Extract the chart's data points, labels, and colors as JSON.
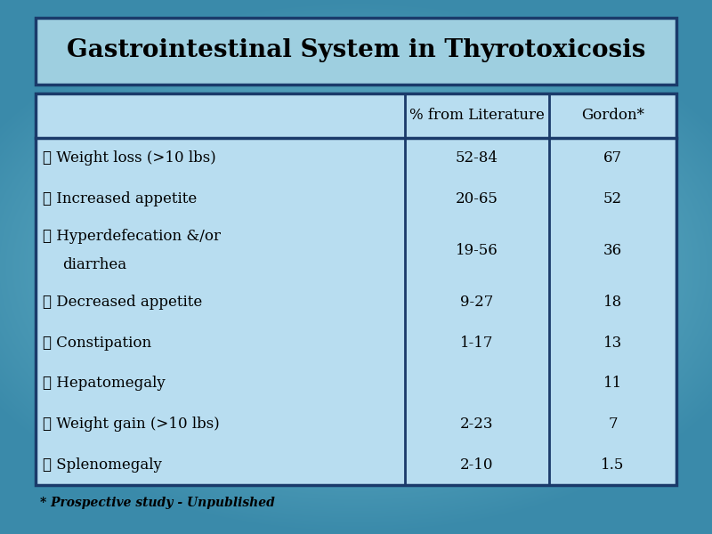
{
  "title": "Gastrointestinal System in Thyrotoxicosis",
  "bg_color_center": "#7ec8d8",
  "bg_color_edge": "#3a8aaa",
  "title_box_color": "#9ecfe0",
  "table_box_color": "#b8ddf0",
  "border_color": "#1a3a6a",
  "rows": [
    {
      "symptom": "Weight loss (>10 lbs)",
      "lit": "52-84",
      "gordon": "67"
    },
    {
      "symptom": "Increased appetite",
      "lit": "20-65",
      "gordon": "52"
    },
    {
      "symptom": "Hyperdefecation &/or\ndiarrhea",
      "lit": "19-56",
      "gordon": "36"
    },
    {
      "symptom": "Decreased appetite",
      "lit": "9-27",
      "gordon": "18"
    },
    {
      "symptom": "Constipation",
      "lit": "1-17",
      "gordon": "13"
    },
    {
      "symptom": "Hepatomegaly",
      "lit": "",
      "gordon": "11"
    },
    {
      "symptom": "Weight gain (>10 lbs)",
      "lit": "2-23",
      "gordon": "7"
    },
    {
      "symptom": "Splenomegaly",
      "lit": "2-10",
      "gordon": "1.5"
    }
  ],
  "col_header_lit": "% from Literature",
  "col_header_gordon": "Gordon*",
  "footnote": "* Prospective study - Unpublished",
  "text_color": "#000000",
  "header_fontsize": 12,
  "title_fontsize": 20,
  "row_fontsize": 12,
  "footnote_fontsize": 10
}
